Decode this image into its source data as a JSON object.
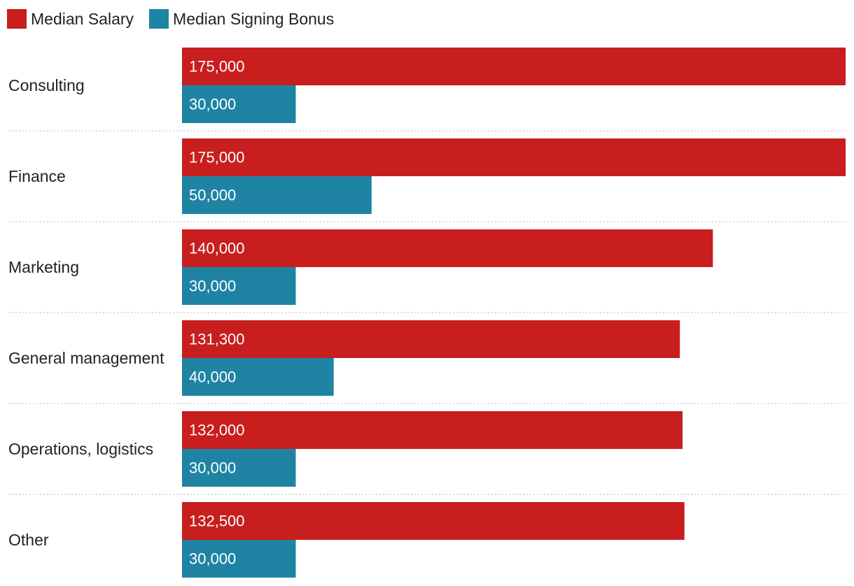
{
  "chart_data": {
    "type": "bar",
    "orientation": "horizontal",
    "categories": [
      "Consulting",
      "Finance",
      "Marketing",
      "General management",
      "Operations, logistics",
      "Other"
    ],
    "series": [
      {
        "name": "Median Salary",
        "color": "#c81e1e",
        "values": [
          175000,
          175000,
          140000,
          131300,
          132000,
          132500
        ],
        "labels": [
          "175,000",
          "175,000",
          "140,000",
          "131,300",
          "132,000",
          "132,500"
        ]
      },
      {
        "name": "Median Signing Bonus",
        "color": "#1f84a3",
        "values": [
          30000,
          50000,
          30000,
          40000,
          30000,
          30000
        ],
        "labels": [
          "30,000",
          "50,000",
          "30,000",
          "40,000",
          "30,000",
          "30,000"
        ]
      }
    ],
    "xlim": [
      0,
      175000
    ],
    "grid": false,
    "legend_position": "top-left",
    "separator_style": "dotted"
  }
}
